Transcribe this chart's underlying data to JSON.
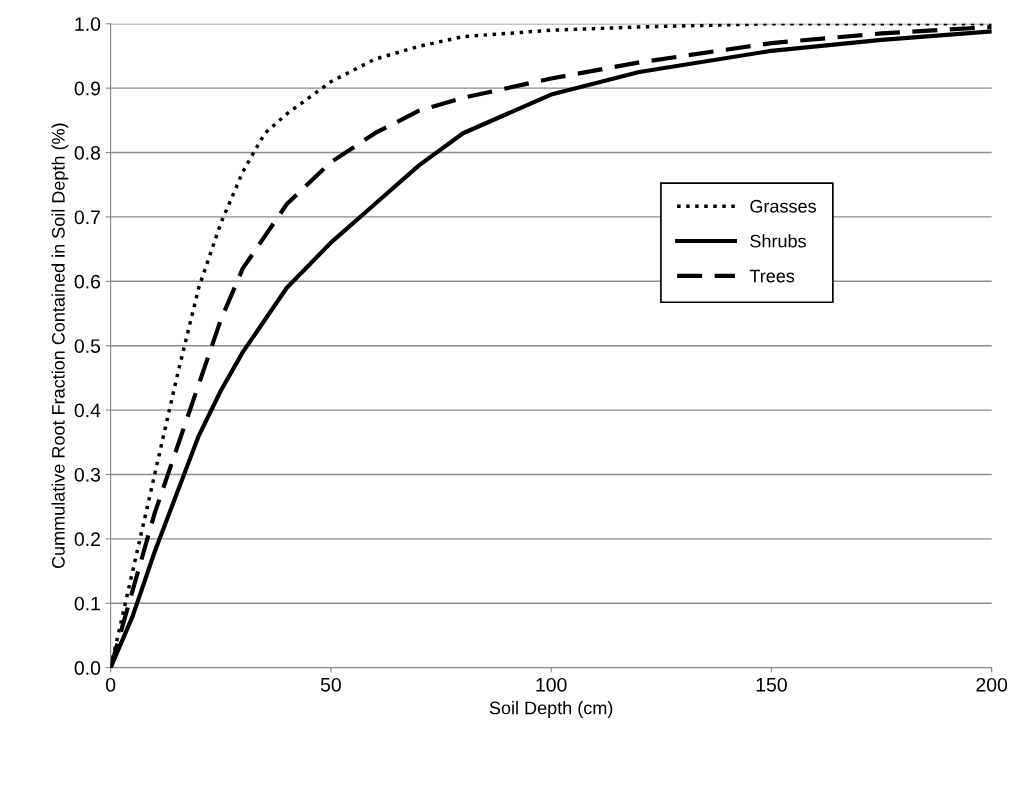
{
  "chart_data": {
    "type": "line",
    "xlabel": "Soil Depth (cm)",
    "ylabel": "Cummulative Root Fraction Contained in Soil Depth (%)",
    "xlim": [
      0,
      200
    ],
    "xticks": [
      0,
      50,
      100,
      150,
      200
    ],
    "ylim": [
      0,
      1.0
    ],
    "yticks": [
      {
        "value": 0,
        "label": "0.0"
      },
      {
        "value": 0.1,
        "label": "0.1"
      },
      {
        "value": 0.2,
        "label": "0.2"
      },
      {
        "value": 0.3,
        "label": "0.3"
      },
      {
        "value": 0.4,
        "label": "0.4"
      },
      {
        "value": 0.5,
        "label": "0.5"
      },
      {
        "value": 0.6,
        "label": "0.6"
      },
      {
        "value": 0.7,
        "label": "0.7"
      },
      {
        "value": 0.8,
        "label": "0.8"
      },
      {
        "value": 0.9,
        "label": "0.9"
      },
      {
        "value": 1.0,
        "label": "1.0"
      }
    ],
    "grid": "y",
    "legend": "right",
    "series": [
      {
        "name": "Grasses",
        "color": "#000000",
        "line_style": "dotted",
        "x": [
          0,
          5,
          10,
          15,
          20,
          25,
          30,
          35,
          40,
          50,
          60,
          70,
          80,
          100,
          120,
          150,
          200
        ],
        "values": [
          0,
          0.15,
          0.3,
          0.45,
          0.59,
          0.69,
          0.77,
          0.83,
          0.86,
          0.91,
          0.945,
          0.965,
          0.98,
          0.99,
          0.995,
          1.0,
          1.0
        ]
      },
      {
        "name": "Shrubs",
        "color": "#000000",
        "line_style": "solid",
        "x": [
          0,
          5,
          10,
          15,
          20,
          25,
          30,
          40,
          50,
          60,
          70,
          80,
          100,
          120,
          150,
          175,
          200
        ],
        "values": [
          0,
          0.08,
          0.18,
          0.27,
          0.36,
          0.43,
          0.49,
          0.59,
          0.66,
          0.72,
          0.78,
          0.83,
          0.89,
          0.925,
          0.958,
          0.975,
          0.988
        ]
      },
      {
        "name": "Trees",
        "color": "#000000",
        "line_style": "dashed",
        "x": [
          0,
          5,
          10,
          15,
          20,
          25,
          30,
          40,
          50,
          60,
          70,
          80,
          100,
          120,
          150,
          175,
          200
        ],
        "values": [
          0,
          0.12,
          0.24,
          0.34,
          0.44,
          0.54,
          0.62,
          0.72,
          0.785,
          0.83,
          0.865,
          0.885,
          0.915,
          0.94,
          0.97,
          0.985,
          0.995
        ]
      }
    ]
  }
}
